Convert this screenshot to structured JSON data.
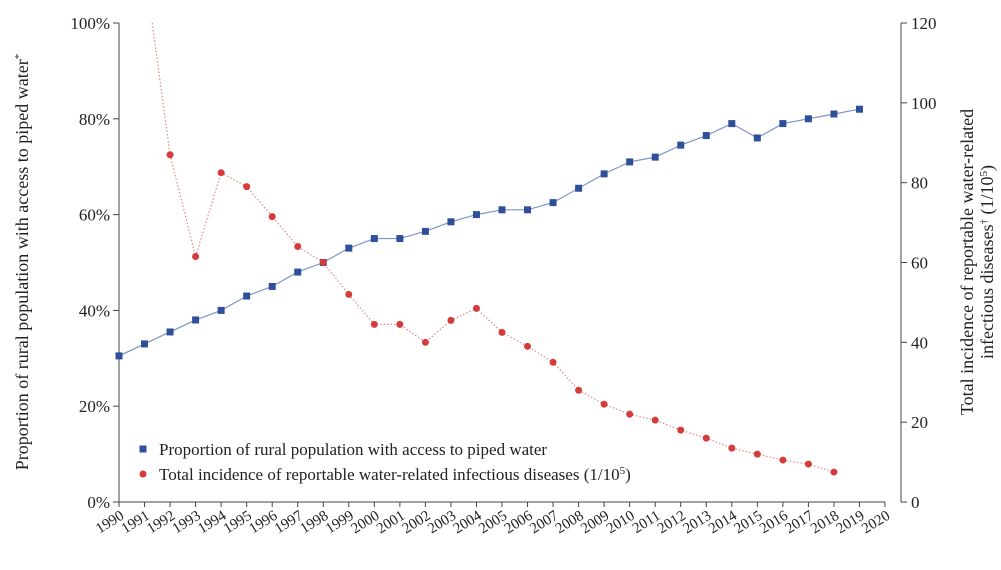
{
  "colors": {
    "series_blue": "#2f4f9a",
    "series_red": "#d63b3b",
    "axis": "#444444"
  },
  "chart_data": {
    "type": "line",
    "x_ticks": [
      "1990",
      "1991",
      "1992",
      "1993",
      "1994",
      "1995",
      "1996",
      "1997",
      "1998",
      "1999",
      "2000",
      "2001",
      "2002",
      "2003",
      "2004",
      "2005",
      "2006",
      "2007",
      "2008",
      "2009",
      "2010",
      "2011",
      "2012",
      "2013",
      "2014",
      "2015",
      "2016",
      "2017",
      "2018",
      "2019",
      "2020"
    ],
    "xlim": [
      1990,
      2020
    ],
    "left_axis": {
      "label": "Proportion of rural population with access to piped water",
      "label_mark": "*",
      "ylim": [
        0,
        100
      ],
      "ticks": [
        "0%",
        "20%",
        "40%",
        "60%",
        "80%",
        "100%"
      ],
      "tick_values": [
        0,
        20,
        40,
        60,
        80,
        100
      ]
    },
    "right_axis": {
      "label_line1": "Total incidence of reportable water-related",
      "label_line2_text": "infectious diseases",
      "label_line2_mark": "†",
      "label_line2_unit": " (1/10",
      "label_line2_exp": "5",
      "label_line2_close": ")",
      "ylim": [
        0,
        120
      ],
      "ticks": [
        "0",
        "20",
        "40",
        "60",
        "80",
        "100",
        "120"
      ],
      "tick_values": [
        0,
        20,
        40,
        60,
        80,
        100,
        120
      ]
    },
    "series": [
      {
        "name": "Proportion of rural population with access to piped water",
        "axis": "left",
        "marker": "square",
        "x": [
          1990,
          1991,
          1992,
          1993,
          1994,
          1995,
          1996,
          1997,
          1998,
          1999,
          2000,
          2001,
          2002,
          2003,
          2004,
          2005,
          2006,
          2007,
          2008,
          2009,
          2010,
          2011,
          2012,
          2013,
          2014,
          2015,
          2016,
          2017,
          2018,
          2019
        ],
        "values": [
          30.5,
          33,
          35.5,
          38,
          40,
          43,
          45,
          48,
          50,
          53,
          55,
          55,
          56.5,
          58.5,
          60,
          61,
          61,
          62.5,
          65.5,
          68.5,
          71,
          72,
          74.5,
          76.5,
          79,
          76,
          79,
          80,
          81,
          82
        ]
      },
      {
        "name": "Total incidence of reportable water-related infectious diseases (1/10",
        "name_exp": "5",
        "name_close": ")",
        "axis": "right",
        "marker": "circle",
        "x": [
          1992,
          1993,
          1994,
          1995,
          1996,
          1997,
          1998,
          1999,
          2000,
          2001,
          2002,
          2003,
          2004,
          2005,
          2006,
          2007,
          2008,
          2009,
          2010,
          2011,
          2012,
          2013,
          2014,
          2015,
          2016,
          2017,
          2018
        ],
        "values": [
          87,
          61.5,
          82.5,
          79,
          71.5,
          64,
          60,
          52,
          44.5,
          44.5,
          40,
          45.5,
          48.5,
          42.5,
          39,
          35,
          28,
          24.5,
          22,
          20.5,
          18,
          16,
          13.5,
          12,
          10.5,
          9.5,
          7.5
        ],
        "leading_line": {
          "x": [
            1991.3,
            1992
          ],
          "values": [
            120,
            87
          ]
        }
      }
    ],
    "legend_position": "bottom-left",
    "grid": false
  }
}
